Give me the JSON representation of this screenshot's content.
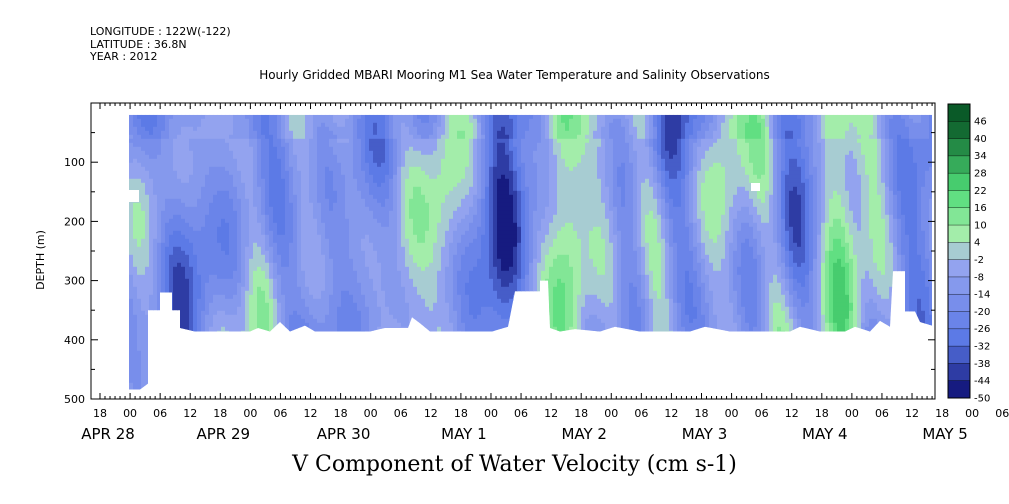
{
  "header": {
    "longitude": "LONGITUDE : 122W(-122)",
    "latitude": "LATITUDE : 36.8N",
    "year": "YEAR : 2012"
  },
  "chart_data": {
    "type": "heatmap",
    "title": "Hourly Gridded MBARI Mooring M1 Sea Water Temperature and Salinity Observations",
    "xlabel": "V Component of Water Velocity (cm s-1)",
    "ylabel": "DEPTH (m)",
    "y_ticks": [
      100,
      200,
      300,
      400,
      500
    ],
    "ylim": [
      500,
      0
    ],
    "x_hour_ticks": [
      "18",
      "00",
      "06",
      "12",
      "18",
      "00",
      "06",
      "12",
      "18",
      "00",
      "06",
      "12",
      "18",
      "00",
      "06",
      "12",
      "18",
      "00",
      "06",
      "12",
      "18",
      "00",
      "06",
      "12",
      "18",
      "00",
      "06",
      "12",
      "18",
      "00",
      "06",
      "12"
    ],
    "date_labels": [
      "APR 28",
      "APR 29",
      "APR 30",
      "MAY  1",
      "MAY  2",
      "MAY  3",
      "MAY  4",
      "MAY  5"
    ],
    "colorbar_levels": [
      46,
      40,
      34,
      28,
      22,
      16,
      10,
      4,
      -2,
      -8,
      -14,
      -20,
      -26,
      -32,
      -38,
      -44,
      -50
    ],
    "colors": {
      "strong_negative": "#0a0a6e",
      "negative": "#5a78e6",
      "weak_negative": "#9aa8f0",
      "weak_positive": "#b4f0b4",
      "positive": "#50dc78",
      "strong_positive": "#0a5a28"
    }
  }
}
